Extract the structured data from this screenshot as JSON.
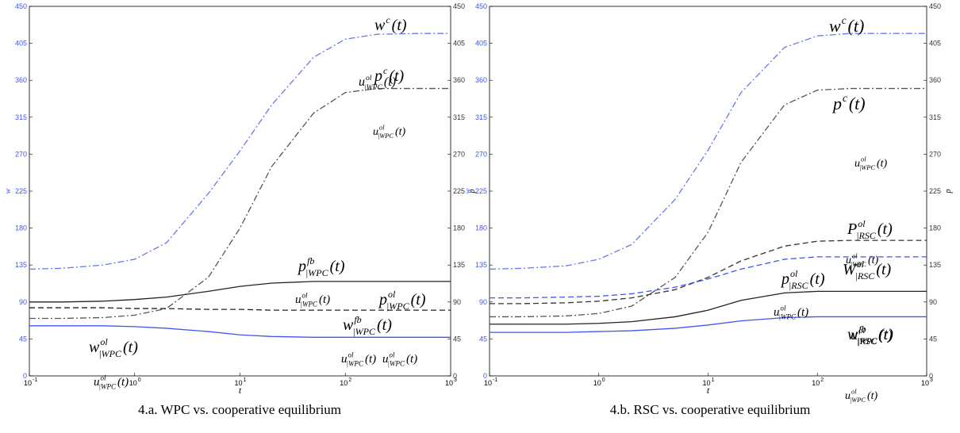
{
  "chart_data": [
    {
      "type": "line",
      "xscale": "log",
      "caption": "4.a. WPC vs. cooperative equilibrium",
      "xlabel": "t",
      "ylabel": "w",
      "y2label": "p",
      "xlim": [
        0.1,
        1000
      ],
      "ylim": [
        0,
        450
      ],
      "y2lim": [
        0,
        450
      ],
      "xticks": [
        {
          "value": 0.1,
          "label": "10",
          "sup": "-1"
        },
        {
          "value": 1,
          "label": "10",
          "sup": "0"
        },
        {
          "value": 10,
          "label": "10",
          "sup": "1"
        },
        {
          "value": 100,
          "label": "10",
          "sup": "2"
        },
        {
          "value": 1000,
          "label": "10",
          "sup": "3"
        }
      ],
      "yticks": [
        0,
        45,
        90,
        135,
        180,
        225,
        270,
        315,
        360,
        405,
        450
      ],
      "y2ticks": [
        0,
        45,
        90,
        135,
        180,
        225,
        270,
        315,
        360,
        405,
        450
      ],
      "x": [
        0.1,
        0.2,
        0.5,
        1,
        2,
        5,
        10,
        20,
        50,
        100,
        200,
        500,
        1000
      ],
      "series": [
        {
          "color": "#6a78f0",
          "style": "dashdot",
          "values": [
            130,
            131,
            135,
            142,
            162,
            222,
            274,
            330,
            388,
            410,
            416,
            417,
            417
          ]
        },
        {
          "color": "#555555",
          "style": "dashdot",
          "values": [
            70,
            70,
            71,
            74,
            82,
            120,
            180,
            255,
            320,
            345,
            350,
            350,
            350
          ]
        },
        {
          "color": "#222222",
          "style": "solid",
          "values": [
            90,
            90,
            91,
            93,
            96,
            103,
            109,
            113,
            115,
            115,
            115,
            115,
            115
          ]
        },
        {
          "color": "#222222",
          "style": "dashed",
          "values": [
            83,
            83,
            83,
            82,
            82,
            81,
            81,
            80,
            80,
            80,
            80,
            80,
            80
          ]
        },
        {
          "color": "#3f55f0",
          "style": "solid",
          "values": [
            61,
            61,
            61,
            60,
            58,
            54,
            50,
            48,
            47,
            47,
            47,
            47,
            47
          ]
        }
      ],
      "annotations": [
        {
          "base": "w",
          "sup": "c",
          "arg": "(t)"
        },
        {
          "base": "u",
          "sup": "ol",
          "sub": "|WPC",
          "arg": "(t)"
        },
        {
          "base": "p",
          "sup": "c",
          "arg": "(t)"
        },
        {
          "base": "u",
          "sup": "ol",
          "sub": "|WPC",
          "arg": "(t)"
        },
        {
          "base": "p",
          "sup": "fb",
          "sub": "|WPC",
          "arg": "(t)"
        },
        {
          "base": "u",
          "sup": "ol",
          "sub": "|WPC",
          "arg": "(t)"
        },
        {
          "base": "p",
          "sup": "ol",
          "sub": "|WPC",
          "arg": "(t)"
        },
        {
          "base": "w",
          "sup": "fb",
          "sub": "|WPC",
          "arg": "(t)"
        },
        {
          "base": "w",
          "sup": "ol",
          "sub": "|WPC",
          "arg": "(t)"
        },
        {
          "base": "u",
          "sup": "ol",
          "sub": "|WPC",
          "arg": "(t)"
        },
        {
          "base": "u",
          "sup": "ol",
          "sub": "|WPC",
          "arg": "(t)"
        },
        {
          "base": "u",
          "sup": "ol",
          "sub": "|WPC",
          "arg": "(t)"
        }
      ]
    },
    {
      "type": "line",
      "xscale": "log",
      "caption": "4.b. RSC vs. cooperative equilibrium",
      "xlabel": "t",
      "ylabel": "w",
      "y2label": "p",
      "xlim": [
        0.1,
        1000
      ],
      "ylim": [
        0,
        450
      ],
      "y2lim": [
        0,
        450
      ],
      "xticks": [
        {
          "value": 0.1,
          "label": "10",
          "sup": "-1"
        },
        {
          "value": 1,
          "label": "10",
          "sup": "0"
        },
        {
          "value": 10,
          "label": "10",
          "sup": "1"
        },
        {
          "value": 100,
          "label": "10",
          "sup": "2"
        },
        {
          "value": 1000,
          "label": "10",
          "sup": "3"
        }
      ],
      "yticks": [
        0,
        45,
        90,
        135,
        180,
        225,
        270,
        315,
        360,
        405,
        450
      ],
      "y2ticks": [
        0,
        45,
        90,
        135,
        180,
        225,
        270,
        315,
        360,
        405,
        450
      ],
      "x": [
        0.1,
        0.2,
        0.5,
        1,
        2,
        5,
        10,
        20,
        50,
        100,
        200,
        500,
        1000
      ],
      "series": [
        {
          "color": "#6a78f0",
          "style": "dashdot",
          "values": [
            130,
            131,
            134,
            142,
            160,
            215,
            275,
            345,
            400,
            414,
            417,
            417,
            417
          ]
        },
        {
          "color": "#555555",
          "style": "dashdot",
          "values": [
            72,
            72,
            73,
            76,
            85,
            120,
            175,
            260,
            330,
            348,
            350,
            350,
            350
          ]
        },
        {
          "color": "#333333",
          "style": "dashed",
          "values": [
            88,
            88,
            89,
            91,
            95,
            105,
            120,
            140,
            158,
            164,
            165,
            165,
            165
          ]
        },
        {
          "color": "#3f55f0",
          "style": "dashed",
          "values": [
            95,
            95,
            96,
            97,
            100,
            108,
            118,
            130,
            142,
            145,
            145,
            145,
            145
          ]
        },
        {
          "color": "#222222",
          "style": "solid",
          "values": [
            63,
            63,
            63,
            64,
            66,
            72,
            80,
            92,
            101,
            103,
            103,
            103,
            103
          ]
        },
        {
          "color": "#3f55f0",
          "style": "solid",
          "values": [
            53,
            53,
            53,
            54,
            55,
            58,
            62,
            67,
            71,
            72,
            72,
            72,
            72
          ]
        }
      ],
      "annotations": [
        {
          "base": "w",
          "sup": "c",
          "arg": "(t)"
        },
        {
          "base": "p",
          "sup": "c",
          "arg": "(t)"
        },
        {
          "base": "u",
          "sup": "ol",
          "sub": "|WPC",
          "arg": "(t)"
        },
        {
          "base": "P",
          "sup": "ol",
          "sub": "|RSC",
          "arg": "(t)"
        },
        {
          "base": "u",
          "sup": "ol",
          "sub": "|WPC",
          "arg": "(t)"
        },
        {
          "base": "p",
          "sup": "ol",
          "sub": "|RSC",
          "arg": "(t)"
        },
        {
          "base": "W",
          "sup": "ol",
          "sub": "|RSC",
          "arg": "(t)"
        },
        {
          "base": "u",
          "sup": "ol",
          "sub": "|WPC",
          "arg": "(t)"
        },
        {
          "base": "w",
          "sup": "fb",
          "sub": "|RSC",
          "arg": "(t)"
        },
        {
          "base": "u",
          "sup": "ol",
          "sub": "|WPC",
          "arg": "(t)"
        },
        {
          "base": "u",
          "sup": "ol",
          "sub": "|WPC",
          "arg": "(t)"
        }
      ]
    }
  ]
}
